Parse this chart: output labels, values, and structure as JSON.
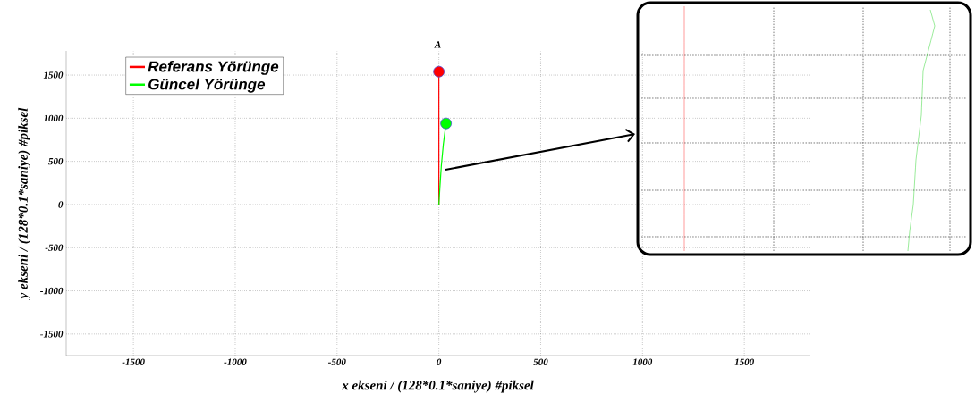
{
  "chart_data": {
    "type": "line",
    "xlabel": "x ekseni / (128*0.1*saniye) #piksel",
    "ylabel": "y ekseni / (128*0.1*saniye) #piksel",
    "annotations": [
      "A"
    ],
    "series": [
      {
        "name": "Referans Yörünge",
        "color": "#ff0000",
        "x": [
          0,
          0
        ],
        "values": [
          0,
          1540
        ]
      },
      {
        "name": "Güncel Yörünge",
        "color": "#00ff00",
        "x": [
          0,
          5,
          12,
          22,
          35
        ],
        "values": [
          0,
          200,
          450,
          700,
          940
        ]
      },
      {
        "type": "scatter",
        "color": "#ff0000",
        "x": [
          0
        ],
        "values": [
          1540
        ]
      },
      {
        "type": "scatter",
        "color": "#00ff00",
        "x": [
          35
        ],
        "values": [
          940
        ]
      }
    ],
    "xlim": [
      -1830,
      1820
    ],
    "ylim": [
      -1750,
      1780
    ],
    "xticks": [
      -1500,
      -1000,
      -500,
      0,
      500,
      1000,
      1500
    ],
    "yticks": [
      -1500,
      -1000,
      -500,
      0,
      500,
      1000,
      1500
    ],
    "grid": true,
    "legend": "top left"
  }
}
